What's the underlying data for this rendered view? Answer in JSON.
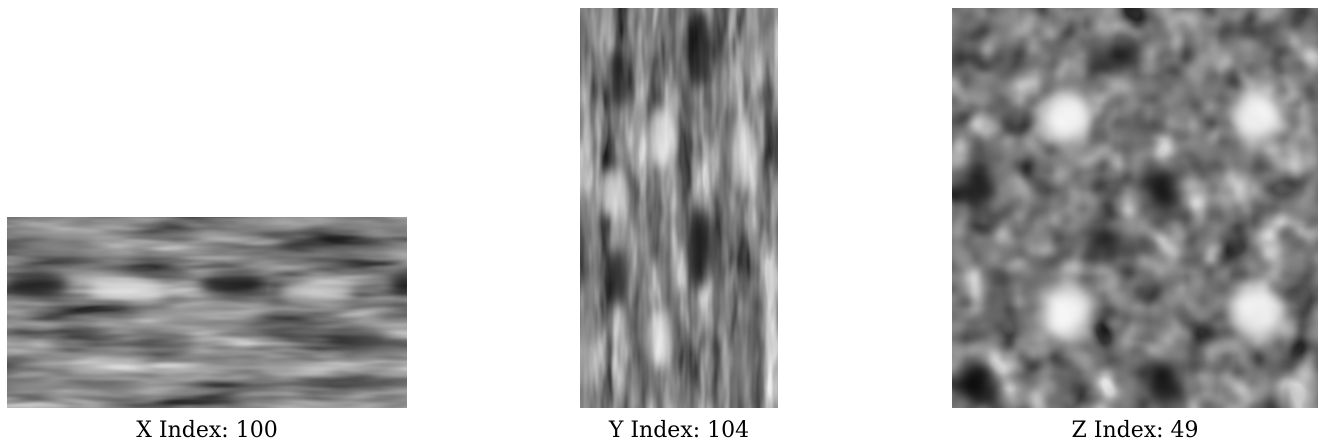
{
  "slices": [
    {
      "id": "x",
      "caption": "X Index: 100"
    },
    {
      "id": "y",
      "caption": "Y Index: 104"
    },
    {
      "id": "z",
      "caption": "Z Index: 49"
    }
  ],
  "colors": {
    "background": "#ffffff",
    "caption_text": "#000000",
    "texture_mid_gray": "#808080"
  }
}
